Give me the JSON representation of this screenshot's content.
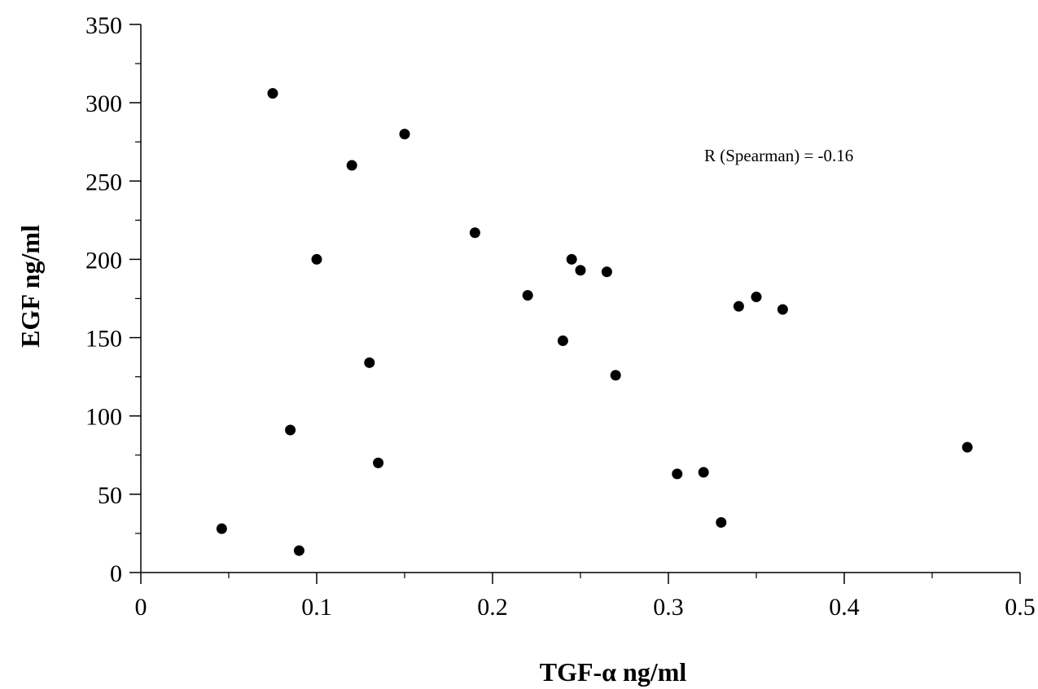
{
  "chart_data": {
    "type": "scatter",
    "title": "",
    "xlabel": "TGF-α ng/ml",
    "ylabel": "EGF ng/ml",
    "xlim": [
      0,
      0.5
    ],
    "ylim": [
      0,
      350
    ],
    "x_ticks": [
      "0",
      "0.1",
      "0.2",
      "0.3",
      "0.4",
      "0.5"
    ],
    "y_ticks": [
      "0",
      "50",
      "100",
      "150",
      "200",
      "250",
      "300",
      "350"
    ],
    "grid": false,
    "annotation": "R (Spearman) = -0.16",
    "marker_color": "#000000",
    "series": [
      {
        "points": [
          {
            "x": 0.046,
            "y": 28
          },
          {
            "x": 0.075,
            "y": 306
          },
          {
            "x": 0.085,
            "y": 91
          },
          {
            "x": 0.09,
            "y": 14
          },
          {
            "x": 0.1,
            "y": 200
          },
          {
            "x": 0.12,
            "y": 260
          },
          {
            "x": 0.13,
            "y": 134
          },
          {
            "x": 0.135,
            "y": 70
          },
          {
            "x": 0.15,
            "y": 280
          },
          {
            "x": 0.19,
            "y": 217
          },
          {
            "x": 0.22,
            "y": 177
          },
          {
            "x": 0.24,
            "y": 148
          },
          {
            "x": 0.245,
            "y": 200
          },
          {
            "x": 0.25,
            "y": 193
          },
          {
            "x": 0.265,
            "y": 192
          },
          {
            "x": 0.27,
            "y": 126
          },
          {
            "x": 0.305,
            "y": 63
          },
          {
            "x": 0.32,
            "y": 64
          },
          {
            "x": 0.33,
            "y": 32
          },
          {
            "x": 0.34,
            "y": 170
          },
          {
            "x": 0.35,
            "y": 176
          },
          {
            "x": 0.365,
            "y": 168
          },
          {
            "x": 0.47,
            "y": 80
          }
        ]
      }
    ]
  }
}
